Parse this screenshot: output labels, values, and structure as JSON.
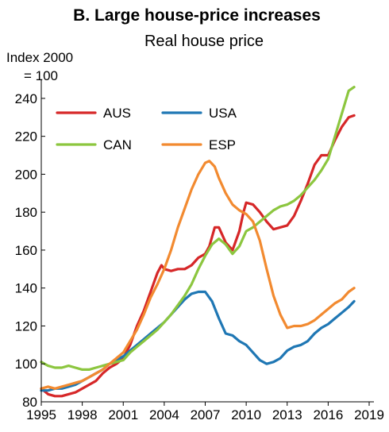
{
  "chart_data": {
    "type": "line",
    "title": "B. Large house-price increases",
    "subtitle": "Real house price",
    "ylabel_line1": "Index 2000",
    "ylabel_line2": "= 100",
    "xlim": [
      1995,
      2019
    ],
    "ylim": [
      80,
      250
    ],
    "x_ticks": [
      1995,
      1998,
      2001,
      2004,
      2007,
      2010,
      2013,
      2016,
      2019
    ],
    "y_ticks": [
      80,
      100,
      120,
      140,
      160,
      180,
      200,
      220,
      240
    ],
    "legend_position": "top-left",
    "grid": false,
    "series": [
      {
        "name": "AUS",
        "color": "#d62728",
        "points": [
          [
            1995,
            87
          ],
          [
            1995.5,
            84
          ],
          [
            1996,
            83
          ],
          [
            1996.5,
            83
          ],
          [
            1997,
            84
          ],
          [
            1997.5,
            85
          ],
          [
            1998,
            87
          ],
          [
            1998.5,
            89
          ],
          [
            1999,
            91
          ],
          [
            1999.5,
            95
          ],
          [
            2000,
            98
          ],
          [
            2000.5,
            100
          ],
          [
            2001,
            103
          ],
          [
            2001.5,
            110
          ],
          [
            2002,
            120
          ],
          [
            2002.5,
            128
          ],
          [
            2003,
            138
          ],
          [
            2003.5,
            148
          ],
          [
            2003.8,
            152
          ],
          [
            2004,
            150
          ],
          [
            2004.5,
            149
          ],
          [
            2005,
            150
          ],
          [
            2005.5,
            150
          ],
          [
            2006,
            152
          ],
          [
            2006.5,
            156
          ],
          [
            2007,
            158
          ],
          [
            2007.3,
            162
          ],
          [
            2007.7,
            172
          ],
          [
            2008,
            172
          ],
          [
            2008.5,
            164
          ],
          [
            2009,
            160
          ],
          [
            2009.5,
            170
          ],
          [
            2009.8,
            180
          ],
          [
            2010,
            185
          ],
          [
            2010.5,
            184
          ],
          [
            2011,
            180
          ],
          [
            2011.5,
            175
          ],
          [
            2012,
            171
          ],
          [
            2012.5,
            172
          ],
          [
            2013,
            173
          ],
          [
            2013.5,
            178
          ],
          [
            2014,
            186
          ],
          [
            2014.5,
            195
          ],
          [
            2015,
            205
          ],
          [
            2015.5,
            210
          ],
          [
            2016,
            210
          ],
          [
            2016.5,
            218
          ],
          [
            2017,
            225
          ],
          [
            2017.5,
            230
          ],
          [
            2017.9,
            231
          ]
        ]
      },
      {
        "name": "USA",
        "color": "#1f77b4",
        "points": [
          [
            1995,
            86
          ],
          [
            1995.5,
            86
          ],
          [
            1996,
            87
          ],
          [
            1996.5,
            87
          ],
          [
            1997,
            88
          ],
          [
            1997.5,
            89
          ],
          [
            1998,
            91
          ],
          [
            1998.5,
            93
          ],
          [
            1999,
            95
          ],
          [
            1999.5,
            97
          ],
          [
            2000,
            100
          ],
          [
            2000.5,
            102
          ],
          [
            2001,
            104
          ],
          [
            2001.5,
            107
          ],
          [
            2002,
            110
          ],
          [
            2002.5,
            113
          ],
          [
            2003,
            116
          ],
          [
            2003.5,
            119
          ],
          [
            2004,
            122
          ],
          [
            2004.5,
            126
          ],
          [
            2005,
            130
          ],
          [
            2005.5,
            134
          ],
          [
            2006,
            137
          ],
          [
            2006.5,
            138
          ],
          [
            2007,
            138
          ],
          [
            2007.5,
            133
          ],
          [
            2008,
            124
          ],
          [
            2008.5,
            116
          ],
          [
            2009,
            115
          ],
          [
            2009.5,
            112
          ],
          [
            2010,
            110
          ],
          [
            2010.5,
            106
          ],
          [
            2011,
            102
          ],
          [
            2011.5,
            100
          ],
          [
            2012,
            101
          ],
          [
            2012.5,
            103
          ],
          [
            2013,
            107
          ],
          [
            2013.5,
            109
          ],
          [
            2014,
            110
          ],
          [
            2014.5,
            112
          ],
          [
            2015,
            116
          ],
          [
            2015.5,
            119
          ],
          [
            2016,
            121
          ],
          [
            2016.5,
            124
          ],
          [
            2017,
            127
          ],
          [
            2017.5,
            130
          ],
          [
            2017.9,
            133
          ]
        ]
      },
      {
        "name": "CAN",
        "color": "#8cc63f",
        "points": [
          [
            1995,
            101
          ],
          [
            1995.5,
            99
          ],
          [
            1996,
            98
          ],
          [
            1996.5,
            98
          ],
          [
            1997,
            99
          ],
          [
            1997.5,
            98
          ],
          [
            1998,
            97
          ],
          [
            1998.5,
            97
          ],
          [
            1999,
            98
          ],
          [
            1999.5,
            99
          ],
          [
            2000,
            100
          ],
          [
            2000.5,
            101
          ],
          [
            2001,
            102
          ],
          [
            2001.5,
            106
          ],
          [
            2002,
            109
          ],
          [
            2002.5,
            112
          ],
          [
            2003,
            115
          ],
          [
            2003.5,
            118
          ],
          [
            2004,
            122
          ],
          [
            2004.5,
            126
          ],
          [
            2005,
            131
          ],
          [
            2005.5,
            136
          ],
          [
            2006,
            142
          ],
          [
            2006.5,
            150
          ],
          [
            2007,
            157
          ],
          [
            2007.5,
            163
          ],
          [
            2008,
            166
          ],
          [
            2008.5,
            163
          ],
          [
            2009,
            158
          ],
          [
            2009.5,
            162
          ],
          [
            2010,
            170
          ],
          [
            2010.5,
            172
          ],
          [
            2011,
            175
          ],
          [
            2011.5,
            178
          ],
          [
            2012,
            181
          ],
          [
            2012.5,
            183
          ],
          [
            2013,
            184
          ],
          [
            2013.5,
            186
          ],
          [
            2014,
            189
          ],
          [
            2014.5,
            193
          ],
          [
            2015,
            197
          ],
          [
            2015.5,
            202
          ],
          [
            2016,
            208
          ],
          [
            2016.5,
            220
          ],
          [
            2017,
            232
          ],
          [
            2017.5,
            244
          ],
          [
            2017.9,
            246
          ]
        ]
      },
      {
        "name": "ESP",
        "color": "#f28a30",
        "points": [
          [
            1995,
            87
          ],
          [
            1995.5,
            88
          ],
          [
            1996,
            87
          ],
          [
            1996.5,
            88
          ],
          [
            1997,
            89
          ],
          [
            1997.5,
            90
          ],
          [
            1998,
            91
          ],
          [
            1998.5,
            93
          ],
          [
            1999,
            95
          ],
          [
            1999.5,
            97
          ],
          [
            2000,
            100
          ],
          [
            2000.5,
            103
          ],
          [
            2001,
            106
          ],
          [
            2001.5,
            112
          ],
          [
            2002,
            118
          ],
          [
            2002.5,
            126
          ],
          [
            2003,
            135
          ],
          [
            2003.5,
            142
          ],
          [
            2004,
            150
          ],
          [
            2004.5,
            160
          ],
          [
            2005,
            172
          ],
          [
            2005.5,
            182
          ],
          [
            2006,
            192
          ],
          [
            2006.5,
            200
          ],
          [
            2007,
            206
          ],
          [
            2007.3,
            207
          ],
          [
            2007.7,
            204
          ],
          [
            2008,
            198
          ],
          [
            2008.5,
            190
          ],
          [
            2009,
            184
          ],
          [
            2009.5,
            181
          ],
          [
            2010,
            179
          ],
          [
            2010.5,
            175
          ],
          [
            2011,
            165
          ],
          [
            2011.5,
            150
          ],
          [
            2012,
            136
          ],
          [
            2012.5,
            126
          ],
          [
            2013,
            119
          ],
          [
            2013.5,
            120
          ],
          [
            2014,
            120
          ],
          [
            2014.5,
            121
          ],
          [
            2015,
            123
          ],
          [
            2015.5,
            126
          ],
          [
            2016,
            129
          ],
          [
            2016.5,
            132
          ],
          [
            2017,
            134
          ],
          [
            2017.5,
            138
          ],
          [
            2017.9,
            140
          ]
        ]
      }
    ]
  }
}
